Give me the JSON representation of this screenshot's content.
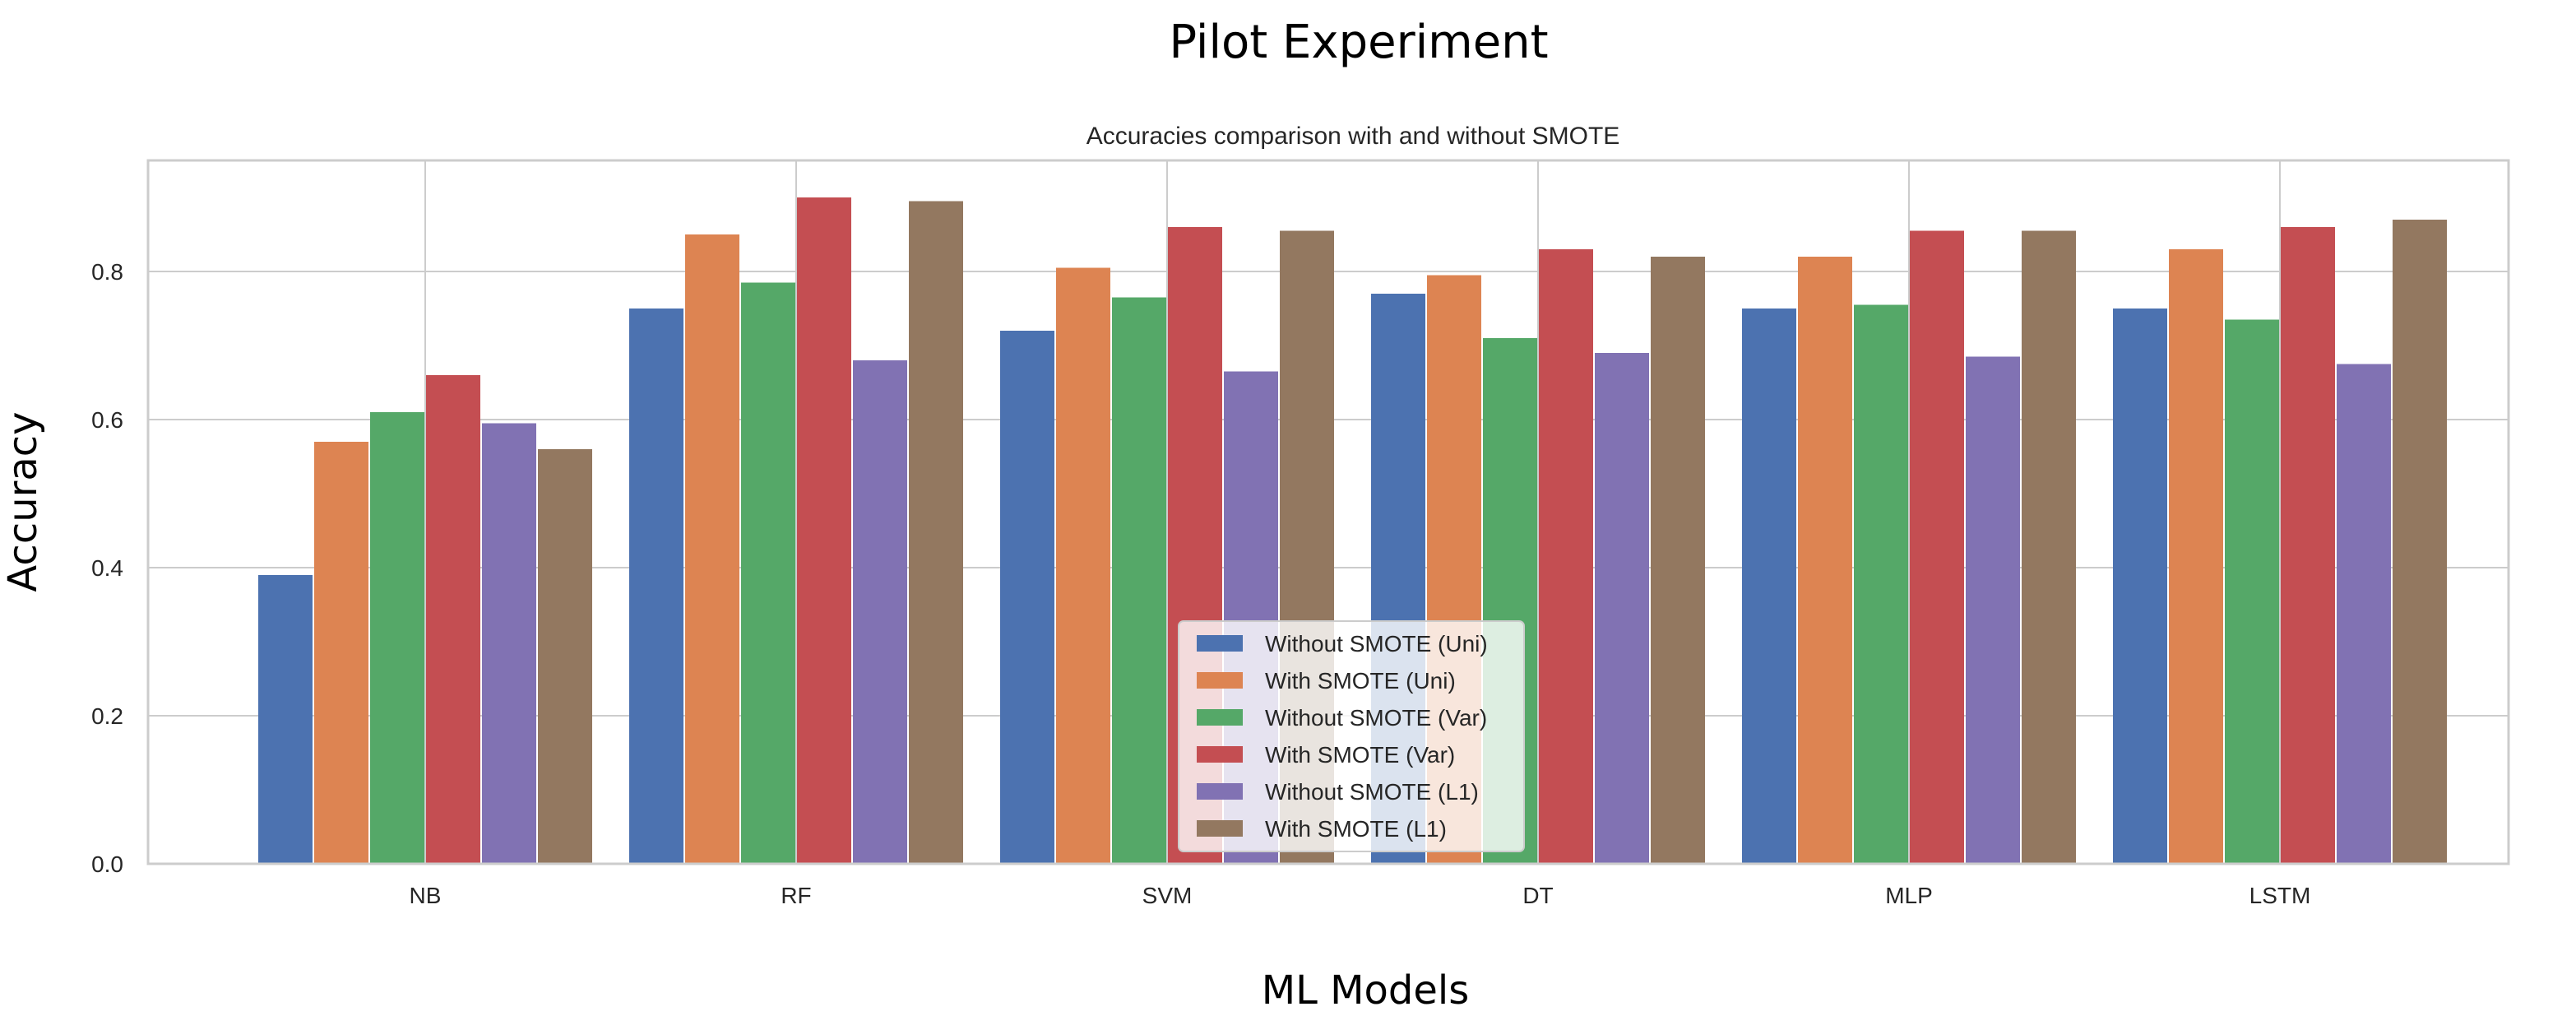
{
  "chart_data": {
    "type": "bar",
    "suptitle": "Pilot Experiment",
    "title": "Accuracies comparison with and without SMOTE",
    "xlabel": "ML Models",
    "ylabel": "Accuracy",
    "ylim": [
      0,
      0.95
    ],
    "yticks": [
      0.0,
      0.2,
      0.4,
      0.6,
      0.8
    ],
    "ytick_labels": [
      "0.0",
      "0.2",
      "0.4",
      "0.6",
      "0.8"
    ],
    "grid": true,
    "legend_position": "lower-center",
    "categories": [
      "NB",
      "RF",
      "SVM",
      "DT",
      "MLP",
      "LSTM"
    ],
    "series": [
      {
        "name": "Without SMOTE (Uni)",
        "color": "#4c72b0",
        "values": [
          0.39,
          0.75,
          0.72,
          0.77,
          0.75,
          0.75
        ]
      },
      {
        "name": "With SMOTE (Uni)",
        "color": "#dd8452",
        "values": [
          0.57,
          0.85,
          0.805,
          0.795,
          0.82,
          0.83
        ]
      },
      {
        "name": "Without SMOTE (Var)",
        "color": "#55a868",
        "values": [
          0.61,
          0.785,
          0.765,
          0.71,
          0.755,
          0.735
        ]
      },
      {
        "name": "With SMOTE (Var)",
        "color": "#c44e52",
        "values": [
          0.66,
          0.9,
          0.86,
          0.83,
          0.855,
          0.86
        ]
      },
      {
        "name": "Without SMOTE (L1)",
        "color": "#8172b3",
        "values": [
          0.595,
          0.68,
          0.665,
          0.69,
          0.685,
          0.675
        ]
      },
      {
        "name": "With SMOTE (L1)",
        "color": "#937860",
        "values": [
          0.56,
          0.895,
          0.855,
          0.82,
          0.855,
          0.87
        ]
      }
    ]
  }
}
